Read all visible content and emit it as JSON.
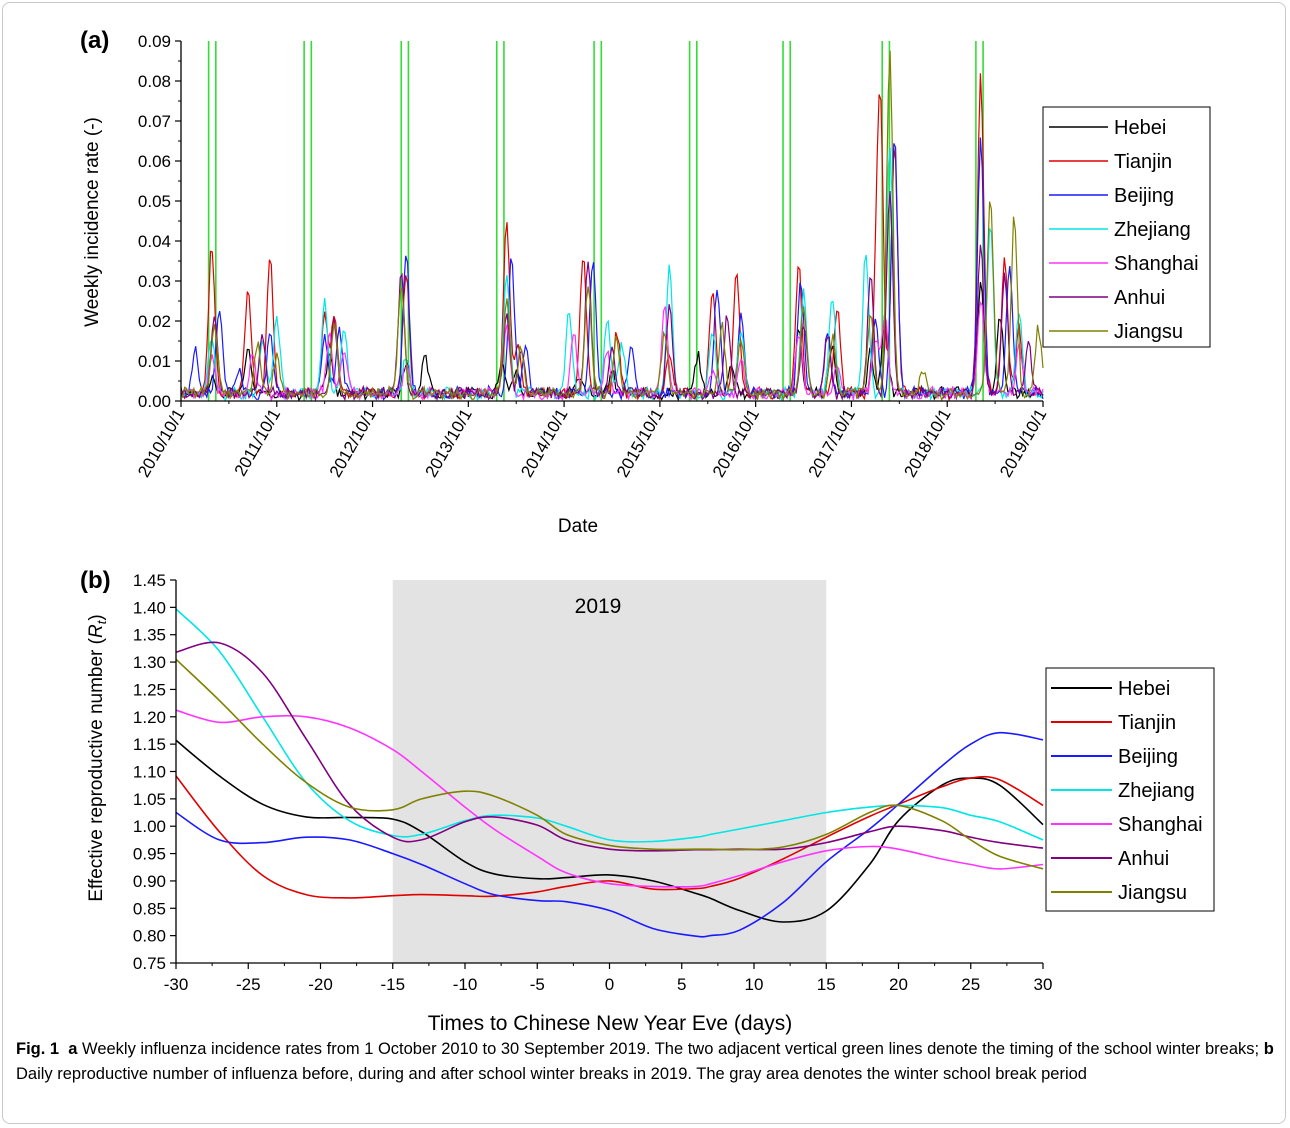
{
  "chart_data": [
    {
      "panel_label": "(a)",
      "type": "line",
      "xlabel": "Date",
      "ylabel": "Weekly incidence rate (-)",
      "ylim": [
        0,
        0.09
      ],
      "x_ticks": [
        "2010/10/1",
        "2011/10/1",
        "2012/10/1",
        "2013/10/1",
        "2014/10/1",
        "2015/10/1",
        "2016/10/1",
        "2017/10/1",
        "2018/10/1",
        "2019/10/1"
      ],
      "y_ticks": [
        "0.00",
        "0.01",
        "0.02",
        "0.03",
        "0.04",
        "0.05",
        "0.06",
        "0.07",
        "0.08",
        "0.09"
      ],
      "winter_breaks": [
        [
          "2011/1/15",
          "2011/2/12"
        ],
        [
          "2012/1/14",
          "2012/2/11"
        ],
        [
          "2013/1/19",
          "2013/2/16"
        ],
        [
          "2014/1/18",
          "2014/2/15"
        ],
        [
          "2015/1/24",
          "2015/2/21"
        ],
        [
          "2016/1/23",
          "2016/2/20"
        ],
        [
          "2017/1/14",
          "2017/2/11"
        ],
        [
          "2018/1/27",
          "2018/2/24"
        ],
        [
          "2019/1/19",
          "2019/2/16"
        ]
      ],
      "legend": "top-right",
      "series": [
        {
          "name": "Hebei",
          "color": "#000000",
          "peaks": [
            [
              2011.07,
              0.004
            ],
            [
              2011.45,
              0.011
            ],
            [
              2012.3,
              0.01
            ],
            [
              2013.1,
              0.008
            ],
            [
              2013.3,
              0.01
            ],
            [
              2014.1,
              0.009
            ],
            [
              2014.25,
              0.006
            ],
            [
              2014.9,
              0.004
            ],
            [
              2015.25,
              0.005
            ],
            [
              2016.15,
              0.009
            ],
            [
              2016.5,
              0.008
            ],
            [
              2017.2,
              0.016
            ],
            [
              2017.55,
              0.012
            ],
            [
              2017.95,
              0.01
            ],
            [
              2018.1,
              0.019
            ],
            [
              2019.1,
              0.028
            ],
            [
              2019.3,
              0.02
            ]
          ]
        },
        {
          "name": "Tianjin",
          "color": "#e00000",
          "peaks": [
            [
              2011.07,
              0.037
            ],
            [
              2011.45,
              0.026
            ],
            [
              2011.68,
              0.034
            ],
            [
              2012.25,
              0.02
            ],
            [
              2012.35,
              0.02
            ],
            [
              2013.1,
              0.031
            ],
            [
              2014.15,
              0.043
            ],
            [
              2014.27,
              0.012
            ],
            [
              2014.95,
              0.035
            ],
            [
              2015.3,
              0.015
            ],
            [
              2015.85,
              0.01
            ],
            [
              2016.3,
              0.027
            ],
            [
              2016.55,
              0.03
            ],
            [
              2017.2,
              0.032
            ],
            [
              2017.6,
              0.022
            ],
            [
              2018.0,
              0.018
            ],
            [
              2018.05,
              0.071
            ],
            [
              2018.2,
              0.063
            ],
            [
              2019.1,
              0.079
            ],
            [
              2019.35,
              0.034
            ],
            [
              2019.5,
              0.016
            ]
          ]
        },
        {
          "name": "Beijing",
          "color": "#1a1aff",
          "peaks": [
            [
              2010.9,
              0.011
            ],
            [
              2011.15,
              0.021
            ],
            [
              2011.35,
              0.006
            ],
            [
              2011.68,
              0.015
            ],
            [
              2012.25,
              0.015
            ],
            [
              2012.4,
              0.016
            ],
            [
              2013.1,
              0.036
            ],
            [
              2014.2,
              0.034
            ],
            [
              2014.35,
              0.011
            ],
            [
              2015.05,
              0.034
            ],
            [
              2015.45,
              0.012
            ],
            [
              2016.35,
              0.027
            ],
            [
              2016.6,
              0.02
            ],
            [
              2017.22,
              0.029
            ],
            [
              2017.5,
              0.016
            ],
            [
              2018.0,
              0.018
            ],
            [
              2018.2,
              0.065
            ],
            [
              2019.1,
              0.065
            ],
            [
              2019.4,
              0.033
            ]
          ]
        },
        {
          "name": "Zhejiang",
          "color": "#00e6e6",
          "peaks": [
            [
              2011.07,
              0.014
            ],
            [
              2011.6,
              0.014
            ],
            [
              2011.75,
              0.02
            ],
            [
              2012.25,
              0.023
            ],
            [
              2012.45,
              0.017
            ],
            [
              2013.1,
              0.01
            ],
            [
              2014.15,
              0.03
            ],
            [
              2014.8,
              0.02
            ],
            [
              2015.2,
              0.019
            ],
            [
              2015.35,
              0.012
            ],
            [
              2015.85,
              0.031
            ],
            [
              2016.3,
              0.016
            ],
            [
              2016.6,
              0.016
            ],
            [
              2017.25,
              0.025
            ],
            [
              2017.55,
              0.024
            ],
            [
              2017.9,
              0.035
            ],
            [
              2018.15,
              0.063
            ],
            [
              2019.2,
              0.043
            ],
            [
              2019.5,
              0.02
            ],
            [
              2019.95,
              0.009
            ]
          ]
        },
        {
          "name": "Shanghai",
          "color": "#ff33ff",
          "peaks": [
            [
              2011.07,
              0.01
            ],
            [
              2011.5,
              0.01
            ],
            [
              2012.3,
              0.015
            ],
            [
              2012.45,
              0.01
            ],
            [
              2013.1,
              0.008
            ],
            [
              2014.15,
              0.017
            ],
            [
              2014.85,
              0.015
            ],
            [
              2015.2,
              0.01
            ],
            [
              2015.8,
              0.022
            ],
            [
              2016.3,
              0.006
            ],
            [
              2016.6,
              0.008
            ],
            [
              2017.2,
              0.015
            ],
            [
              2017.6,
              0.008
            ],
            [
              2018.0,
              0.014
            ],
            [
              2018.1,
              0.02
            ],
            [
              2019.1,
              0.024
            ],
            [
              2019.5,
              0.012
            ],
            [
              2019.9,
              0.004
            ]
          ]
        },
        {
          "name": "Anhui",
          "color": "#800080",
          "peaks": [
            [
              2011.1,
              0.02
            ],
            [
              2011.6,
              0.015
            ],
            [
              2012.35,
              0.018
            ],
            [
              2013.05,
              0.03
            ],
            [
              2014.15,
              0.02
            ],
            [
              2014.3,
              0.012
            ],
            [
              2015.0,
              0.033
            ],
            [
              2015.25,
              0.012
            ],
            [
              2015.85,
              0.023
            ],
            [
              2016.45,
              0.019
            ],
            [
              2017.25,
              0.018
            ],
            [
              2017.5,
              0.015
            ],
            [
              2017.95,
              0.029
            ],
            [
              2018.15,
              0.05
            ],
            [
              2019.1,
              0.037
            ],
            [
              2019.35,
              0.03
            ],
            [
              2019.6,
              0.013
            ]
          ]
        },
        {
          "name": "Jiangsu",
          "color": "#808000",
          "peaks": [
            [
              2011.1,
              0.017
            ],
            [
              2011.55,
              0.013
            ],
            [
              2011.75,
              0.009
            ],
            [
              2012.35,
              0.017
            ],
            [
              2013.05,
              0.027
            ],
            [
              2014.15,
              0.024
            ],
            [
              2014.3,
              0.011
            ],
            [
              2015.0,
              0.028
            ],
            [
              2015.3,
              0.014
            ],
            [
              2015.8,
              0.015
            ],
            [
              2016.4,
              0.017
            ],
            [
              2016.6,
              0.014
            ],
            [
              2017.25,
              0.022
            ],
            [
              2017.55,
              0.014
            ],
            [
              2017.95,
              0.02
            ],
            [
              2018.15,
              0.085
            ],
            [
              2018.5,
              0.006
            ],
            [
              2019.2,
              0.05
            ],
            [
              2019.45,
              0.044
            ],
            [
              2019.7,
              0.017
            ]
          ]
        }
      ]
    },
    {
      "panel_label": "(b)",
      "type": "line",
      "annotation": "2019",
      "xlabel": "Times to Chinese New Year Eve (days)",
      "ylabel_prefix": "Effective reproductive number (",
      "ylabel_symbol": "R",
      "ylabel_subscript": "t",
      "ylabel_suffix": ")",
      "xlim": [
        -30,
        30
      ],
      "ylim": [
        0.75,
        1.45
      ],
      "shaded_region": [
        -15,
        15
      ],
      "x_ticks": [
        "-30",
        "-25",
        "-20",
        "-15",
        "-10",
        "-5",
        "0",
        "5",
        "10",
        "15",
        "20",
        "25",
        "30"
      ],
      "y_ticks": [
        "0.75",
        "0.80",
        "0.85",
        "0.90",
        "0.95",
        "1.00",
        "1.05",
        "1.10",
        "1.15",
        "1.20",
        "1.25",
        "1.30",
        "1.35",
        "1.40",
        "1.45"
      ],
      "legend": "right",
      "x": [
        -30,
        -27,
        -24,
        -21,
        -18,
        -15,
        -13,
        -10,
        -8,
        -5,
        -3,
        0,
        3,
        6,
        7,
        9,
        12,
        15,
        18,
        20,
        23,
        25,
        27,
        30
      ],
      "series": [
        {
          "name": "Hebei",
          "color": "#000000",
          "values": [
            1.157,
            1.092,
            1.04,
            1.017,
            1.016,
            1.013,
            0.99,
            0.935,
            0.913,
            0.904,
            0.906,
            0.911,
            0.9,
            0.877,
            0.868,
            0.846,
            0.825,
            0.845,
            0.93,
            1.01,
            1.075,
            1.088,
            1.075,
            1.003
          ]
        },
        {
          "name": "Tianjin",
          "color": "#e00000",
          "values": [
            1.092,
            0.99,
            0.91,
            0.875,
            0.869,
            0.873,
            0.875,
            0.873,
            0.872,
            0.88,
            0.89,
            0.9,
            0.885,
            0.886,
            0.89,
            0.905,
            0.94,
            0.98,
            1.018,
            1.04,
            1.072,
            1.088,
            1.085,
            1.038
          ]
        },
        {
          "name": "Beijing",
          "color": "#1a1aff",
          "values": [
            1.025,
            0.975,
            0.97,
            0.98,
            0.975,
            0.95,
            0.93,
            0.895,
            0.875,
            0.864,
            0.862,
            0.846,
            0.813,
            0.799,
            0.8,
            0.81,
            0.86,
            0.935,
            0.995,
            1.04,
            1.11,
            1.15,
            1.171,
            1.158
          ]
        },
        {
          "name": "Zhejiang",
          "color": "#00e6e6",
          "values": [
            1.397,
            1.32,
            1.2,
            1.08,
            1.01,
            0.983,
            0.985,
            1.01,
            1.02,
            1.015,
            1.0,
            0.975,
            0.972,
            0.98,
            0.985,
            0.995,
            1.01,
            1.025,
            1.035,
            1.038,
            1.034,
            1.02,
            1.008,
            0.975
          ]
        },
        {
          "name": "Shanghai",
          "color": "#ff33ff",
          "values": [
            1.212,
            1.19,
            1.2,
            1.2,
            1.18,
            1.14,
            1.1,
            1.035,
            0.995,
            0.945,
            0.915,
            0.895,
            0.89,
            0.89,
            0.895,
            0.91,
            0.935,
            0.955,
            0.963,
            0.958,
            0.94,
            0.93,
            0.922,
            0.93
          ]
        },
        {
          "name": "Anhui",
          "color": "#800080",
          "values": [
            1.318,
            1.335,
            1.28,
            1.16,
            1.04,
            0.98,
            0.975,
            1.008,
            1.017,
            1.002,
            0.975,
            0.958,
            0.955,
            0.957,
            0.957,
            0.958,
            0.958,
            0.97,
            0.99,
            1.0,
            0.992,
            0.98,
            0.97,
            0.96
          ]
        },
        {
          "name": "Jiangsu",
          "color": "#808000",
          "values": [
            1.305,
            1.23,
            1.15,
            1.08,
            1.035,
            1.03,
            1.05,
            1.064,
            1.055,
            1.02,
            0.985,
            0.965,
            0.958,
            0.958,
            0.958,
            0.957,
            0.962,
            0.985,
            1.025,
            1.038,
            1.01,
            0.975,
            0.945,
            0.922
          ]
        }
      ]
    }
  ],
  "caption": {
    "fig_label": "Fig. 1",
    "a_label": "a",
    "a_text": "Weekly influenza incidence rates from 1 October 2010 to 30 September 2019. The two adjacent vertical green lines denote the timing of the school winter breaks;",
    "b_label": "b",
    "b_text": "Daily reproductive number of influenza before, during and after school winter breaks in 2019. The gray area denotes the winter school break period"
  }
}
